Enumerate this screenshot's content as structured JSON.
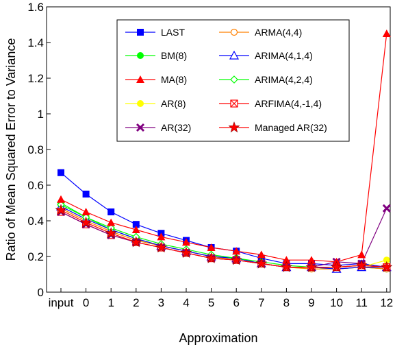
{
  "chart_data": {
    "type": "line",
    "xlabel": "Approximation",
    "ylabel": "Ratio of Mean Squared Error to Variance",
    "categories": [
      "input",
      "0",
      "1",
      "2",
      "3",
      "4",
      "5",
      "6",
      "7",
      "8",
      "9",
      "10",
      "11",
      "12"
    ],
    "ylim": [
      0,
      1.6
    ],
    "yticks": [
      "0",
      "0.2",
      "0.4",
      "0.6",
      "0.8",
      "1",
      "1.2",
      "1.4",
      "1.6"
    ],
    "legend_position": "top-right",
    "series": [
      {
        "name": "LAST",
        "color": "#0000ff",
        "marker": "square",
        "values": [
          0.67,
          0.55,
          0.45,
          0.38,
          0.33,
          0.29,
          0.25,
          0.23,
          0.19,
          0.16,
          0.16,
          0.15,
          0.16,
          0.14
        ]
      },
      {
        "name": "BM(8)",
        "color": "#00ff00",
        "marker": "circle",
        "values": [
          0.5,
          0.42,
          0.35,
          0.3,
          0.26,
          0.23,
          0.2,
          0.19,
          0.16,
          0.14,
          0.14,
          0.13,
          0.14,
          0.13
        ]
      },
      {
        "name": "MA(8)",
        "color": "#ff0000",
        "marker": "triangle",
        "values": [
          0.52,
          0.45,
          0.39,
          0.35,
          0.31,
          0.28,
          0.25,
          0.23,
          0.21,
          0.18,
          0.18,
          0.17,
          0.21,
          1.45
        ]
      },
      {
        "name": "AR(8)",
        "color": "#ffff00",
        "marker": "circle",
        "values": [
          0.47,
          0.4,
          0.34,
          0.29,
          0.26,
          0.23,
          0.2,
          0.18,
          0.16,
          0.14,
          0.13,
          0.13,
          0.14,
          0.18
        ]
      },
      {
        "name": "AR(32)",
        "color": "#800080",
        "marker": "x",
        "values": [
          0.45,
          0.38,
          0.32,
          0.28,
          0.25,
          0.22,
          0.19,
          0.18,
          0.16,
          0.14,
          0.14,
          0.17,
          0.16,
          0.47
        ]
      },
      {
        "name": "ARMA(4,4)",
        "color": "#ff8000",
        "marker": "open-circle",
        "values": [
          0.47,
          0.4,
          0.34,
          0.29,
          0.26,
          0.23,
          0.2,
          0.18,
          0.16,
          0.14,
          0.13,
          0.13,
          0.14,
          0.13
        ]
      },
      {
        "name": "ARIMA(4,1,4)",
        "color": "#0000ff",
        "marker": "open-triangle",
        "values": [
          0.48,
          0.41,
          0.35,
          0.3,
          0.26,
          0.23,
          0.2,
          0.19,
          0.16,
          0.14,
          0.14,
          0.13,
          0.14,
          0.14
        ]
      },
      {
        "name": "ARIMA(4,2,4)",
        "color": "#00ff00",
        "marker": "open-diamond",
        "values": [
          0.49,
          0.42,
          0.36,
          0.31,
          0.27,
          0.24,
          0.21,
          0.19,
          0.17,
          0.15,
          0.14,
          0.14,
          0.15,
          0.14
        ]
      },
      {
        "name": "ARFIMA(4,-1,4)",
        "color": "#ff0000",
        "marker": "box-x",
        "values": [
          0.45,
          0.38,
          0.32,
          0.28,
          0.25,
          0.22,
          0.19,
          0.18,
          0.16,
          0.14,
          0.14,
          0.14,
          0.15,
          0.14
        ]
      },
      {
        "name": "Managed AR(32)",
        "color": "#ff0000",
        "marker": "star",
        "values": [
          0.46,
          0.39,
          0.33,
          0.28,
          0.25,
          0.22,
          0.19,
          0.18,
          0.16,
          0.14,
          0.14,
          0.14,
          0.15,
          0.14
        ]
      }
    ]
  }
}
